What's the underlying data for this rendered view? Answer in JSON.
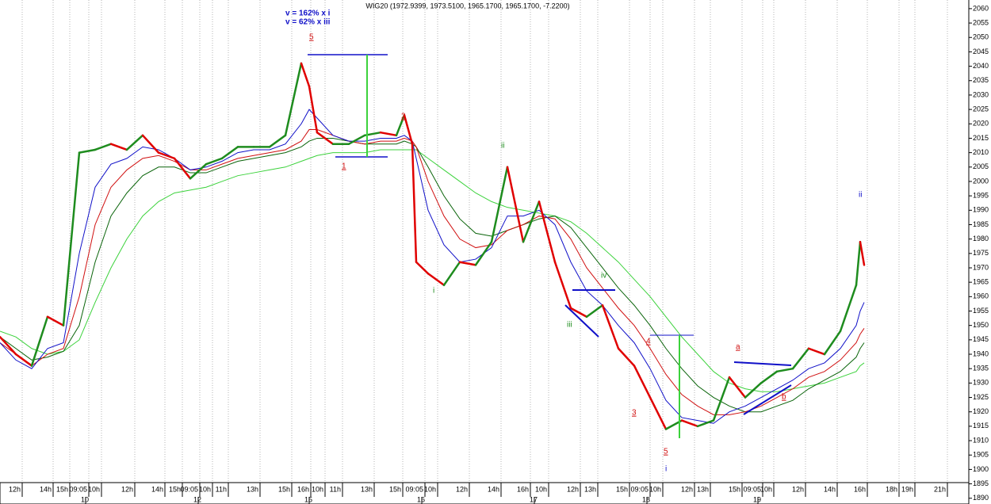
{
  "chart_data": {
    "type": "line",
    "title": "WIG20 (1972.9399, 1973.5100, 1965.1700, 1965.1700, -7.2200)",
    "x": [
      0,
      2,
      4,
      6,
      8,
      10,
      12,
      14,
      16,
      18,
      20,
      22,
      24,
      26,
      28,
      30,
      32,
      34,
      36,
      38,
      39,
      40,
      42,
      44,
      46,
      48,
      50,
      51,
      52,
      52.5,
      54,
      56,
      58,
      60,
      62,
      64,
      66,
      68,
      70,
      72,
      74,
      76,
      78,
      80,
      82,
      84,
      86,
      88,
      90,
      92,
      94,
      96,
      98,
      100,
      102,
      104,
      106,
      108,
      108.5,
      109
    ],
    "xlim": [
      0,
      122.2
    ],
    "ylim": [
      1888,
      2063
    ],
    "yticks": [
      1890,
      1895,
      1900,
      1905,
      1910,
      1915,
      1920,
      1925,
      1930,
      1935,
      1940,
      1945,
      1950,
      1955,
      1960,
      1965,
      1970,
      1975,
      1980,
      1985,
      1990,
      1995,
      2000,
      2005,
      2010,
      2015,
      2020,
      2025,
      2030,
      2035,
      2040,
      2045,
      2050,
      2055,
      2060
    ],
    "xticks": [
      {
        "value": 2.8,
        "label": "12h"
      },
      {
        "value": 6.7,
        "label": "14h"
      },
      {
        "value": 8.8,
        "label": "15h"
      },
      {
        "value": 11.2,
        "label": "09:05"
      },
      {
        "value": 12.8,
        "label": "10h"
      },
      {
        "value": 17.0,
        "label": "12h"
      },
      {
        "value": 20.8,
        "label": "14h"
      },
      {
        "value": 23.0,
        "label": "15h"
      },
      {
        "value": 25.2,
        "label": "09:05"
      },
      {
        "value": 26.8,
        "label": "10h"
      },
      {
        "value": 28.8,
        "label": "11h"
      },
      {
        "value": 32.8,
        "label": "13h"
      },
      {
        "value": 36.8,
        "label": "15h"
      },
      {
        "value": 39.2,
        "label": "16h"
      },
      {
        "value": 41.0,
        "label": "10h"
      },
      {
        "value": 43.2,
        "label": "11h"
      },
      {
        "value": 47.2,
        "label": "13h"
      },
      {
        "value": 50.8,
        "label": "15h"
      },
      {
        "value": 53.6,
        "label": "09:05"
      },
      {
        "value": 55.2,
        "label": "10h"
      },
      {
        "value": 59.2,
        "label": "12h"
      },
      {
        "value": 63.2,
        "label": "14h"
      },
      {
        "value": 66.9,
        "label": "16h"
      },
      {
        "value": 69.2,
        "label": "10h"
      },
      {
        "value": 73.2,
        "label": "12h"
      },
      {
        "value": 75.4,
        "label": "13h"
      },
      {
        "value": 79.4,
        "label": "15h"
      },
      {
        "value": 82.0,
        "label": "09:05"
      },
      {
        "value": 83.6,
        "label": "10h"
      },
      {
        "value": 87.6,
        "label": "12h"
      },
      {
        "value": 89.6,
        "label": "13h"
      },
      {
        "value": 93.6,
        "label": "15h"
      },
      {
        "value": 96.2,
        "label": "09:05"
      },
      {
        "value": 97.6,
        "label": "10h"
      },
      {
        "value": 101.6,
        "label": "12h"
      },
      {
        "value": 105.6,
        "label": "14h"
      },
      {
        "value": 109.4,
        "label": "16h"
      },
      {
        "value": 113.4,
        "label": "18h"
      },
      {
        "value": 115.4,
        "label": "19h"
      },
      {
        "value": 119.5,
        "label": "21h"
      }
    ],
    "day_ticks": [
      {
        "value": 10.8,
        "label": "10"
      },
      {
        "value": 25.0,
        "label": "12"
      },
      {
        "value": 39.0,
        "label": "15"
      },
      {
        "value": 53.2,
        "label": "16"
      },
      {
        "value": 67.4,
        "label": "17"
      },
      {
        "value": 81.6,
        "label": "18"
      },
      {
        "value": 95.6,
        "label": "19"
      }
    ],
    "grid": true,
    "price_up_color": "#1e8c1e",
    "price_down_color": "#e00000",
    "price": [
      1946,
      1940,
      1936,
      1953,
      1950,
      2010,
      2011,
      2013,
      2011,
      2016,
      2010,
      2008,
      2001,
      2006,
      2008,
      2012,
      2012,
      2012,
      2016,
      2041,
      2033,
      2017,
      2013,
      2013,
      2016,
      2017,
      2016,
      2023,
      2013,
      1972,
      1968,
      1964,
      1972,
      1971,
      1979,
      2005,
      1979,
      1993,
      1972,
      1956,
      1953,
      1957,
      1942,
      1936,
      1925,
      1914,
      1917,
      1915,
      1917,
      1932,
      1925,
      1930,
      1934,
      1935,
      1942,
      1940,
      1948,
      1964,
      1979,
      1971
    ],
    "series": [
      {
        "color": "#1010c8",
        "values": [
          1944,
          1938,
          1935,
          1942,
          1944,
          1975,
          1998,
          2006,
          2008,
          2012,
          2011,
          2008,
          2004,
          2005,
          2007,
          2010,
          2011,
          2011,
          2013,
          2020,
          2025,
          2022,
          2016,
          2014,
          2014,
          2015,
          2015,
          2016,
          2014,
          2008,
          1990,
          1978,
          1972,
          1973,
          1977,
          1988,
          1988,
          1990,
          1985,
          1972,
          1962,
          1957,
          1950,
          1944,
          1935,
          1924,
          1918,
          1917,
          1916,
          1920,
          1922,
          1925,
          1928,
          1931,
          1935,
          1937,
          1942,
          1950,
          1955,
          1958
        ]
      },
      {
        "color": "#d01010",
        "values": [
          1944,
          1940,
          1936,
          1940,
          1942,
          1960,
          1985,
          1998,
          2004,
          2008,
          2009,
          2007,
          2004,
          2004,
          2006,
          2008,
          2009,
          2010,
          2011,
          2014,
          2018,
          2018,
          2016,
          2014,
          2013,
          2014,
          2014,
          2015,
          2014,
          2012,
          2000,
          1988,
          1980,
          1977,
          1978,
          1983,
          1985,
          1988,
          1987,
          1980,
          1970,
          1963,
          1956,
          1950,
          1942,
          1933,
          1926,
          1922,
          1919,
          1919,
          1920,
          1922,
          1925,
          1928,
          1932,
          1934,
          1938,
          1944,
          1947,
          1949
        ]
      },
      {
        "color": "#0a640a",
        "values": [
          1946,
          1942,
          1938,
          1939,
          1941,
          1950,
          1972,
          1988,
          1996,
          2002,
          2005,
          2005,
          2003,
          2003,
          2005,
          2007,
          2008,
          2009,
          2010,
          2012,
          2014,
          2015,
          2015,
          2014,
          2013,
          2013,
          2013,
          2014,
          2013,
          2012,
          2005,
          1995,
          1987,
          1982,
          1981,
          1983,
          1985,
          1987,
          1988,
          1984,
          1977,
          1970,
          1963,
          1957,
          1950,
          1942,
          1935,
          1929,
          1925,
          1922,
          1920,
          1920,
          1922,
          1924,
          1928,
          1931,
          1934,
          1939,
          1942,
          1944
        ]
      },
      {
        "color": "#3cd23c",
        "values": [
          1948,
          1946,
          1942,
          1940,
          1941,
          1945,
          1958,
          1970,
          1980,
          1988,
          1993,
          1996,
          1997,
          1998,
          2000,
          2002,
          2003,
          2004,
          2005,
          2007,
          2008,
          2009,
          2010,
          2010,
          2010,
          2011,
          2011,
          2011,
          2011,
          2011,
          2008,
          2004,
          2000,
          1996,
          1993,
          1991,
          1990,
          1989,
          1988,
          1986,
          1982,
          1977,
          1972,
          1966,
          1960,
          1953,
          1946,
          1940,
          1934,
          1930,
          1928,
          1927,
          1927,
          1928,
          1929,
          1930,
          1932,
          1934,
          1936,
          1937
        ]
      }
    ],
    "annotations": [
      "v = 162% x i",
      "v = 62% x iii",
      "5",
      "1",
      "2",
      "i",
      "ii",
      "iii",
      "iv",
      "3",
      "4",
      "5",
      "i",
      "a",
      "b",
      "ii"
    ]
  }
}
